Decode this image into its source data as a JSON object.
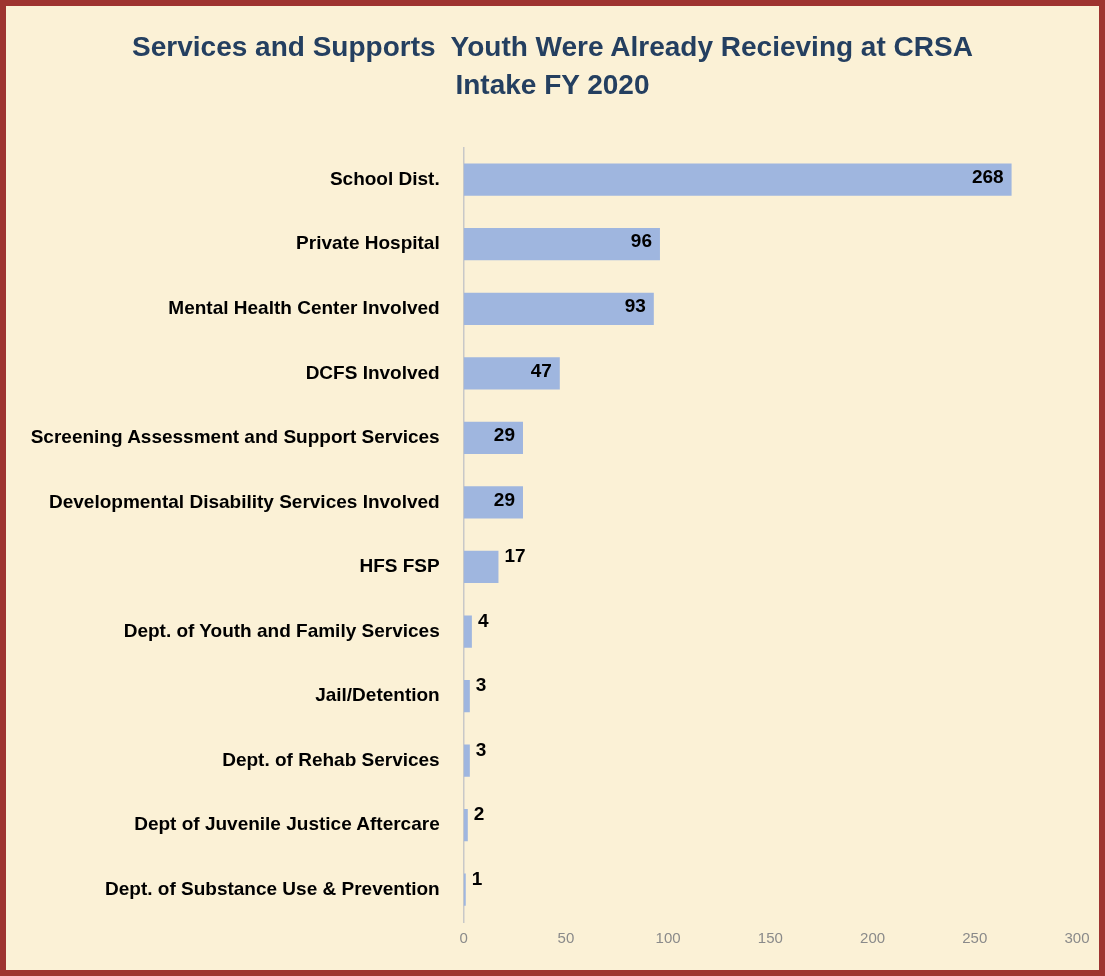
{
  "chart_data": {
    "type": "bar",
    "orientation": "horizontal",
    "title": "Services and Supports  Youth Were Already Recieving at CRSA Intake FY 2020",
    "categories": [
      "School Dist.",
      "Private Hospital",
      "Mental Health Center Involved",
      "DCFS Involved",
      "Screening Assessment and Support Services",
      "Developmental Disability Services Involved",
      "HFS FSP",
      "Dept. of Youth and Family Services",
      "Jail/Detention",
      "Dept. of Rehab Services",
      "Dept of Juvenile Justice Aftercare",
      "Dept. of Substance Use & Prevention"
    ],
    "values": [
      268,
      96,
      93,
      47,
      29,
      29,
      17,
      4,
      3,
      3,
      2,
      1
    ],
    "color": "#9fb6df",
    "xlim": [
      0,
      300
    ],
    "xticks": [
      0,
      50,
      100,
      150,
      200,
      250,
      300
    ],
    "data_labels": true,
    "grid": false,
    "legend": false
  }
}
